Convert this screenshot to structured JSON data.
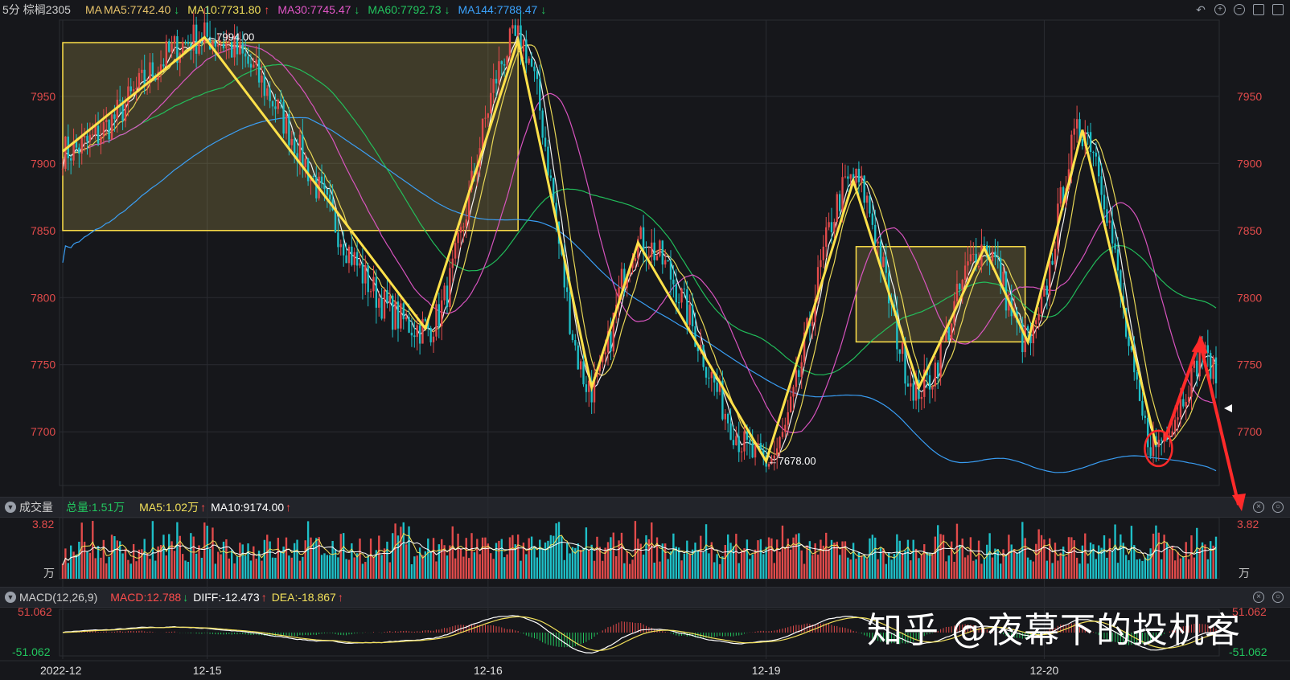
{
  "header": {
    "period": "5分",
    "symbol": "棕榈2305",
    "ma_label": "MA",
    "indicators": [
      {
        "text": "MA5:7742.40",
        "arrow": "↓",
        "color": "#e8c46a",
        "arrow_color": "#22c55e"
      },
      {
        "text": "MA10:7731.80",
        "arrow": "↑",
        "color": "#f2e05a",
        "arrow_color": "#ff4d4d"
      },
      {
        "text": "MA30:7745.47",
        "arrow": "↓",
        "color": "#e256c7",
        "arrow_color": "#22c55e"
      },
      {
        "text": "MA60:7792.73",
        "arrow": "↓",
        "color": "#22c55e",
        "arrow_color": "#22c55e"
      },
      {
        "text": "MA144:7788.47",
        "arrow": "↓",
        "color": "#3ba4ff",
        "arrow_color": "#22c55e"
      }
    ]
  },
  "volume_header": {
    "title": "成交量",
    "total": "总量:1.51万",
    "ma5": "MA5:1.02万",
    "ma10": "MA10:9174.00",
    "ma5_arrow": "↑",
    "ma10_arrow": "↑"
  },
  "macd_header": {
    "title": "MACD(12,26,9)",
    "macd": "MACD:12.788",
    "macd_arrow": "↓",
    "diff": "DIFF:-12.473",
    "diff_arrow": "↑",
    "dea": "DEA:-18.867",
    "dea_arrow": "↑"
  },
  "price_labels": {
    "high": "←7994.00",
    "low": "←7678.00"
  },
  "watermark": "知乎 @夜幕下的投机客",
  "colors": {
    "up": "#e24b4b",
    "down": "#1ec0c8",
    "zigzag": "#ffe14a",
    "arrow": "#ff2a2a",
    "ma5": "#ffffff",
    "ma10": "#f2e05a",
    "ma30": "#e256c7",
    "ma60": "#22c55e",
    "ma144": "#3ba4ff"
  },
  "chart_data": {
    "type": "candlestick",
    "title": "",
    "ylim": [
      7660,
      8002
    ],
    "y_ticks": [
      "7950",
      "7900",
      "7850",
      "7800",
      "7750",
      "7700"
    ],
    "y_tick_values": [
      7950,
      7900,
      7850,
      7800,
      7750,
      7700
    ],
    "x_ticks": [
      "2022-12",
      "12-15",
      "12-16",
      "12-19",
      "12-20"
    ],
    "x_tick_index": [
      0,
      53,
      156,
      258,
      360
    ],
    "n_bars": 424,
    "zigzag": [
      {
        "i": 0,
        "v": 7909
      },
      {
        "i": 52,
        "v": 7994
      },
      {
        "i": 133,
        "v": 7777
      },
      {
        "i": 167,
        "v": 7992
      },
      {
        "i": 194,
        "v": 7733
      },
      {
        "i": 211,
        "v": 7841
      },
      {
        "i": 258,
        "v": 7678
      },
      {
        "i": 290,
        "v": 7887
      },
      {
        "i": 314,
        "v": 7733
      },
      {
        "i": 338,
        "v": 7837
      },
      {
        "i": 354,
        "v": 7767
      },
      {
        "i": 374,
        "v": 7925
      },
      {
        "i": 401,
        "v": 7690
      }
    ],
    "boxes": [
      {
        "i0": 0,
        "i1": 167,
        "v0": 7850,
        "v1": 7990
      },
      {
        "i0": 291,
        "i1": 353,
        "v0": 7767,
        "v1": 7838
      }
    ],
    "volume": {
      "axis_label": "3.82",
      "unit": "万",
      "max": 3.82
    },
    "macd": {
      "top_label": "51.062",
      "bottom_label": "-51.062",
      "range": [
        -51.062,
        51.062
      ]
    }
  }
}
